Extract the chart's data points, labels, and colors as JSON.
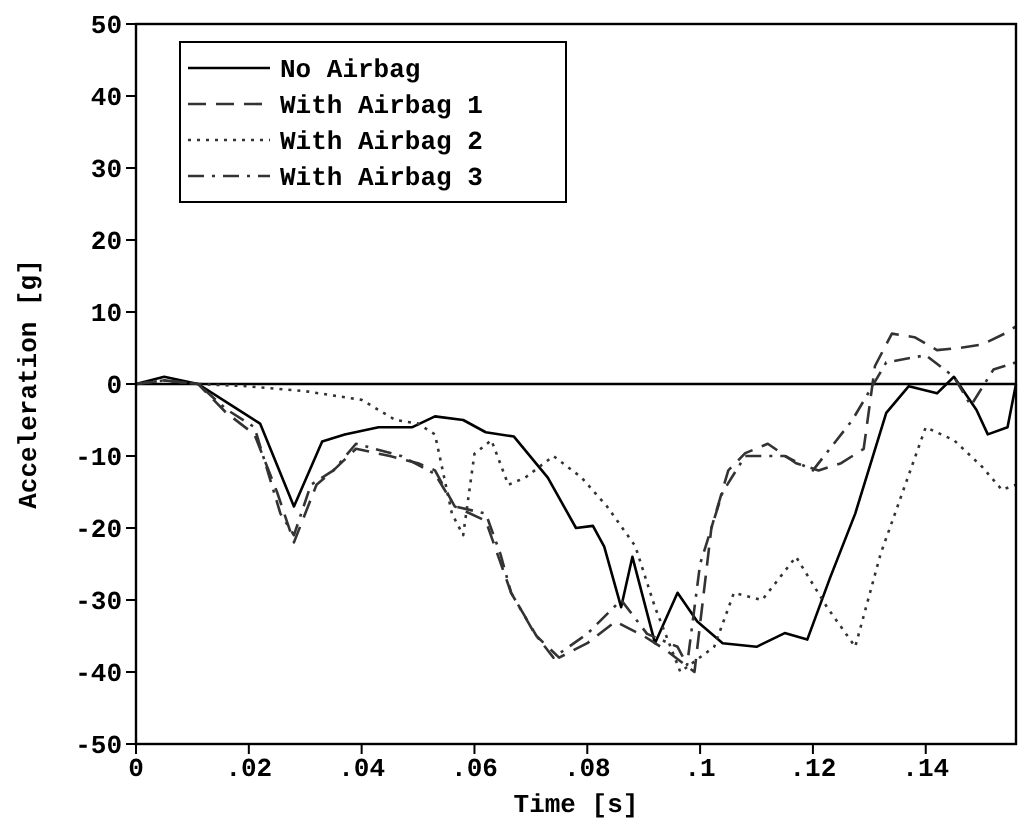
{
  "chart_data": {
    "type": "line",
    "xlabel": "Time [s]",
    "ylabel": "Acceleration [g]",
    "xlim": [
      0,
      0.156
    ],
    "ylim": [
      -50,
      50
    ],
    "xticks": [
      0,
      {
        "value": 0.02,
        "label": ".02"
      },
      {
        "value": 0.04,
        "label": ".04"
      },
      {
        "value": 0.06,
        "label": ".06"
      },
      {
        "value": 0.08,
        "label": ".08"
      },
      {
        "value": 0.1,
        "label": ".1"
      },
      {
        "value": 0.12,
        "label": ".12"
      },
      {
        "value": 0.14,
        "label": ".14"
      }
    ],
    "yticks": [
      -50,
      -40,
      -30,
      -20,
      -10,
      0,
      10,
      20,
      30,
      40,
      50
    ],
    "grid": false,
    "legend": "top left",
    "ref_lines": [
      {
        "axis": "y",
        "value": 0,
        "color": "#000000"
      }
    ],
    "series": [
      {
        "name": "No Airbag",
        "color": "#000000",
        "line_style": "solid",
        "x": [
          0,
          0.005,
          0.011,
          0.017,
          0.022,
          0.028,
          0.033,
          0.037,
          0.043,
          0.049,
          0.053,
          0.058,
          0.062,
          0.067,
          0.073,
          0.078,
          0.081,
          0.083,
          0.086,
          0.088,
          0.092,
          0.096,
          0.0995,
          0.104,
          0.11,
          0.115,
          0.119,
          0.123,
          0.1275,
          0.133,
          0.137,
          0.142,
          0.145,
          0.149,
          0.151,
          0.1545,
          0.156
        ],
        "values": [
          0,
          1,
          0,
          -3,
          -5.5,
          -17,
          -8,
          -7,
          -6,
          -6,
          -4.5,
          -5,
          -6.7,
          -7.3,
          -13,
          -20,
          -19.7,
          -22.6,
          -31,
          -24,
          -36,
          -29,
          -33,
          -36,
          -36.5,
          -34.6,
          -35.5,
          -27,
          -18,
          -4,
          -0.3,
          -1.3,
          1,
          -3.6,
          -7,
          -6,
          0
        ]
      },
      {
        "name": "With Airbag 1",
        "color": "#333333",
        "line_style": "dashed",
        "x": [
          0,
          0.005,
          0.011,
          0.016,
          0.021,
          0.025,
          0.028,
          0.032,
          0.035,
          0.039,
          0.045,
          0.05,
          0.053,
          0.0565,
          0.062,
          0.0665,
          0.071,
          0.075,
          0.08,
          0.085,
          0.09,
          0.094,
          0.099,
          0.102,
          0.105,
          0.108,
          0.112,
          0.117,
          0.121,
          0.125,
          0.129,
          0.131,
          0.134,
          0.138,
          0.142,
          0.146,
          0.15,
          0.154,
          0.156
        ],
        "values": [
          0,
          0.5,
          0,
          -4,
          -7,
          -15,
          -22,
          -14,
          -12,
          -9,
          -10,
          -11,
          -12,
          -17,
          -19,
          -29,
          -35,
          -38,
          -36,
          -33,
          -35,
          -37,
          -40,
          -20,
          -12,
          -9.6,
          -8.3,
          -11,
          -12,
          -11,
          -9,
          2.5,
          7,
          6.5,
          4.7,
          5,
          5.5,
          7,
          8
        ]
      },
      {
        "name": "With Airbag 2",
        "color": "#333333",
        "line_style": "dotted",
        "x": [
          0,
          0.005,
          0.011,
          0.0195,
          0.03,
          0.04,
          0.046,
          0.05,
          0.053,
          0.056,
          0.058,
          0.06,
          0.063,
          0.066,
          0.069,
          0.074,
          0.079,
          0.0835,
          0.0885,
          0.092,
          0.0965,
          0.1025,
          0.106,
          0.111,
          0.117,
          0.1225,
          0.1275,
          0.132,
          0.14,
          0.145,
          0.15,
          0.1535,
          0.156
        ],
        "values": [
          0,
          0.5,
          0,
          -0.3,
          -1,
          -2.2,
          -5,
          -5.5,
          -7,
          -18,
          -21,
          -9.7,
          -7.8,
          -14,
          -13,
          -10,
          -13,
          -17,
          -22.5,
          -31,
          -40,
          -36.5,
          -29,
          -30,
          -24,
          -31,
          -36.5,
          -23.6,
          -6,
          -7.8,
          -11.5,
          -14.7,
          -14
        ]
      },
      {
        "name": "With Airbag 3",
        "color": "#333333",
        "line_style": "dashdot",
        "x": [
          0,
          0.005,
          0.011,
          0.016,
          0.021,
          0.0256,
          0.028,
          0.031,
          0.035,
          0.039,
          0.047,
          0.053,
          0.0565,
          0.062,
          0.0646,
          0.0665,
          0.0707,
          0.074,
          0.08,
          0.086,
          0.0906,
          0.096,
          0.0977,
          0.1,
          0.104,
          0.108,
          0.115,
          0.12,
          0.127,
          0.133,
          0.14,
          0.145,
          0.148,
          0.152,
          0.156
        ],
        "values": [
          0,
          0.5,
          0,
          -3.5,
          -6,
          -18,
          -21,
          -14,
          -12,
          -8.3,
          -10,
          -12.5,
          -17,
          -18,
          -23.6,
          -29,
          -34.7,
          -38,
          -34.7,
          -30,
          -34.7,
          -36.5,
          -39,
          -25,
          -15,
          -10,
          -10,
          -12,
          -5,
          3,
          4,
          1,
          -3,
          2,
          3
        ]
      }
    ]
  }
}
